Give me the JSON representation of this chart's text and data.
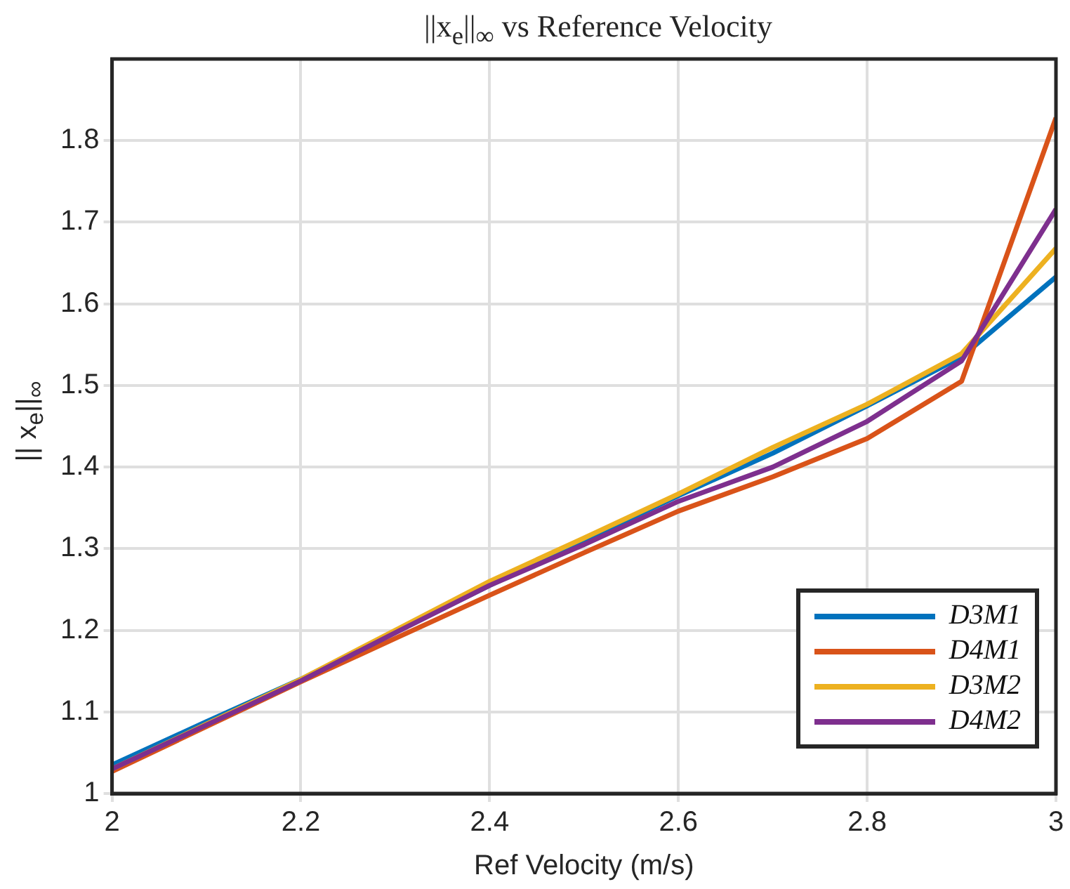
{
  "chart_data": {
    "type": "line",
    "title": "||x$_{e}$||$_{∞}$ vs Reference Velocity",
    "xlabel": "Ref Velocity (m/s)",
    "ylabel": "|| x$_{e}$||$_{∞}$",
    "x": [
      2,
      2.1,
      2.2,
      2.3,
      2.4,
      2.5,
      2.6,
      2.7,
      2.8,
      2.9,
      3
    ],
    "series": [
      {
        "name": "D3M1",
        "color": "#0072bd",
        "values": [
          1.035,
          1.088,
          1.14,
          1.198,
          1.255,
          1.31,
          1.365,
          1.417,
          1.475,
          1.535,
          1.633
        ]
      },
      {
        "name": "D4M1",
        "color": "#d95319",
        "values": [
          1.027,
          1.082,
          1.137,
          1.19,
          1.243,
          1.295,
          1.346,
          1.388,
          1.435,
          1.505,
          1.828
        ]
      },
      {
        "name": "D3M2",
        "color": "#edb120",
        "values": [
          1.03,
          1.085,
          1.14,
          1.2,
          1.26,
          1.313,
          1.367,
          1.424,
          1.477,
          1.539,
          1.668
        ]
      },
      {
        "name": "D4M2",
        "color": "#7e2f8e",
        "values": [
          1.03,
          1.084,
          1.138,
          1.197,
          1.255,
          1.305,
          1.358,
          1.4,
          1.456,
          1.53,
          1.716
        ]
      }
    ],
    "xlim": [
      2,
      3
    ],
    "xticks": [
      2,
      2.2,
      2.4,
      2.6,
      2.8,
      3
    ],
    "ylim": [
      1,
      1.9
    ],
    "yticks": [
      1,
      1.1,
      1.2,
      1.3,
      1.4,
      1.5,
      1.6,
      1.7,
      1.8
    ],
    "grid": true,
    "legend": "bottom right",
    "marker": "none",
    "line_style": "solid"
  }
}
